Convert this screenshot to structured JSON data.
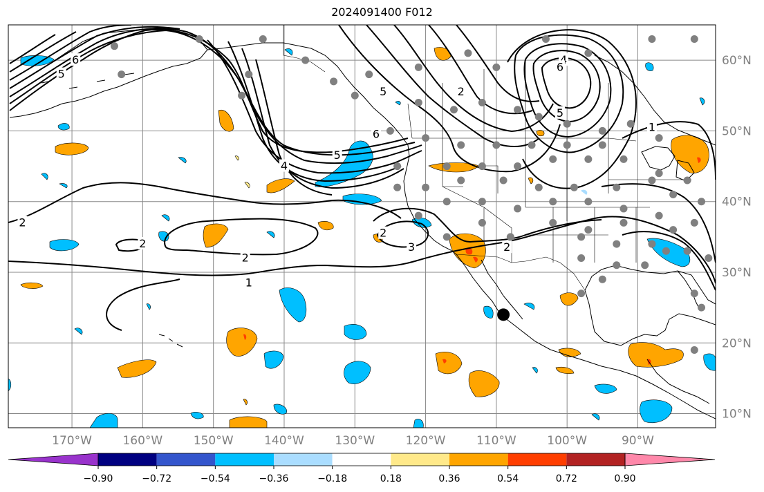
{
  "title": "2024091400 F012",
  "map": {
    "projection": "cylindrical",
    "lon_range": [
      -179,
      -79
    ],
    "lat_range": [
      8,
      65
    ],
    "gridlines": true,
    "lat_ticks": [
      {
        "value": 10,
        "label": "10°N"
      },
      {
        "value": 20,
        "label": "20°N"
      },
      {
        "value": 30,
        "label": "30°N"
      },
      {
        "value": 40,
        "label": "40°N"
      },
      {
        "value": 50,
        "label": "50°N"
      },
      {
        "value": 60,
        "label": "60°N"
      }
    ],
    "lon_ticks": [
      {
        "value": -170,
        "label": "170°W"
      },
      {
        "value": -160,
        "label": "160°W"
      },
      {
        "value": -150,
        "label": "150°W"
      },
      {
        "value": -140,
        "label": "140°W"
      },
      {
        "value": -130,
        "label": "130°W"
      },
      {
        "value": -120,
        "label": "120°W"
      },
      {
        "value": -110,
        "label": "110°W"
      },
      {
        "value": -100,
        "label": "100°W"
      },
      {
        "value": -90,
        "label": "90°W"
      }
    ],
    "marker": {
      "name": "black-dot",
      "lon": -109,
      "lat": 24
    }
  },
  "contour_labels": [
    {
      "text": "6",
      "lon": -169.5,
      "lat": 60
    },
    {
      "text": "5",
      "lon": -171.5,
      "lat": 58
    },
    {
      "text": "4",
      "lon": -140,
      "lat": 45
    },
    {
      "text": "5",
      "lon": -132.5,
      "lat": 46.5
    },
    {
      "text": "6",
      "lon": -127,
      "lat": 49.5
    },
    {
      "text": "5",
      "lon": -126,
      "lat": 55.5
    },
    {
      "text": "2",
      "lon": -115,
      "lat": 55.5
    },
    {
      "text": "4",
      "lon": -100.5,
      "lat": 60
    },
    {
      "text": "6",
      "lon": -101,
      "lat": 59
    },
    {
      "text": "5",
      "lon": -101,
      "lat": 52.5
    },
    {
      "text": "1",
      "lon": -88,
      "lat": 50.5
    },
    {
      "text": "2",
      "lon": -177,
      "lat": 37
    },
    {
      "text": "2",
      "lon": -160,
      "lat": 34
    },
    {
      "text": "2",
      "lon": -145.5,
      "lat": 32
    },
    {
      "text": "1",
      "lon": -145,
      "lat": 28.5
    },
    {
      "text": "2",
      "lon": -126,
      "lat": 35.5
    },
    {
      "text": "3",
      "lon": -122,
      "lat": 33.5
    },
    {
      "text": "2",
      "lon": -108.5,
      "lat": 33.5
    }
  ],
  "stations": [
    [
      -164,
      62
    ],
    [
      -152,
      63
    ],
    [
      -143,
      63
    ],
    [
      -163,
      58
    ],
    [
      -145,
      58
    ],
    [
      -146,
      55
    ],
    [
      -133,
      57
    ],
    [
      -128,
      58
    ],
    [
      -121,
      59
    ],
    [
      -114,
      61
    ],
    [
      -110,
      59
    ],
    [
      -103,
      63
    ],
    [
      -97,
      61
    ],
    [
      -88,
      63
    ],
    [
      -82,
      63
    ],
    [
      -137,
      60
    ],
    [
      -130,
      55
    ],
    [
      -121,
      54
    ],
    [
      -116,
      53
    ],
    [
      -112,
      54
    ],
    [
      -107,
      53
    ],
    [
      -104,
      52
    ],
    [
      -100,
      51
    ],
    [
      -95,
      50
    ],
    [
      -91,
      51
    ],
    [
      -87,
      49
    ],
    [
      -125,
      50
    ],
    [
      -120,
      49
    ],
    [
      -115,
      48
    ],
    [
      -110,
      48
    ],
    [
      -105,
      48
    ],
    [
      -100,
      48
    ],
    [
      -95,
      48
    ],
    [
      -124,
      45
    ],
    [
      -117,
      45
    ],
    [
      -112,
      45
    ],
    [
      -107,
      45
    ],
    [
      -102,
      46
    ],
    [
      -97,
      46
    ],
    [
      -92,
      46
    ],
    [
      -87,
      44
    ],
    [
      -83,
      43
    ],
    [
      -124,
      42
    ],
    [
      -120,
      42
    ],
    [
      -115,
      43
    ],
    [
      -109,
      43
    ],
    [
      -104,
      42
    ],
    [
      -99,
      42
    ],
    [
      -93,
      42
    ],
    [
      -88,
      43
    ],
    [
      -85,
      41
    ],
    [
      -81,
      40
    ],
    [
      -117,
      40
    ],
    [
      -112,
      40
    ],
    [
      -107,
      39
    ],
    [
      -102,
      40
    ],
    [
      -97,
      40
    ],
    [
      -92,
      39
    ],
    [
      -87,
      38
    ],
    [
      -82,
      37
    ],
    [
      -121,
      38
    ],
    [
      -112,
      37
    ],
    [
      -102,
      37
    ],
    [
      -97,
      36
    ],
    [
      -92,
      37
    ],
    [
      -85,
      36
    ],
    [
      -117,
      35
    ],
    [
      -108,
      35
    ],
    [
      -98,
      35
    ],
    [
      -93,
      34
    ],
    [
      -88,
      34
    ],
    [
      -83,
      33
    ],
    [
      -98,
      32
    ],
    [
      -93,
      31
    ],
    [
      -89,
      31
    ],
    [
      -86,
      33
    ],
    [
      -80,
      32
    ],
    [
      -95,
      29
    ],
    [
      -82,
      27
    ],
    [
      -98,
      27
    ],
    [
      -81,
      25
    ],
    [
      -82,
      19
    ]
  ],
  "colorbar": {
    "ticks": [
      "−0.90",
      "−0.72",
      "−0.54",
      "−0.36",
      "−0.18",
      "0.18",
      "0.36",
      "0.54",
      "0.72",
      "0.90"
    ],
    "under_color": "#9933CC",
    "colors": [
      "#000080",
      "#3355CC",
      "#00BFFF",
      "#AADDFF",
      "#FFFFFF",
      "#FFE98A",
      "#FFA500",
      "#FF3E00",
      "#B22222"
    ],
    "over_color": "#FF88AA"
  }
}
